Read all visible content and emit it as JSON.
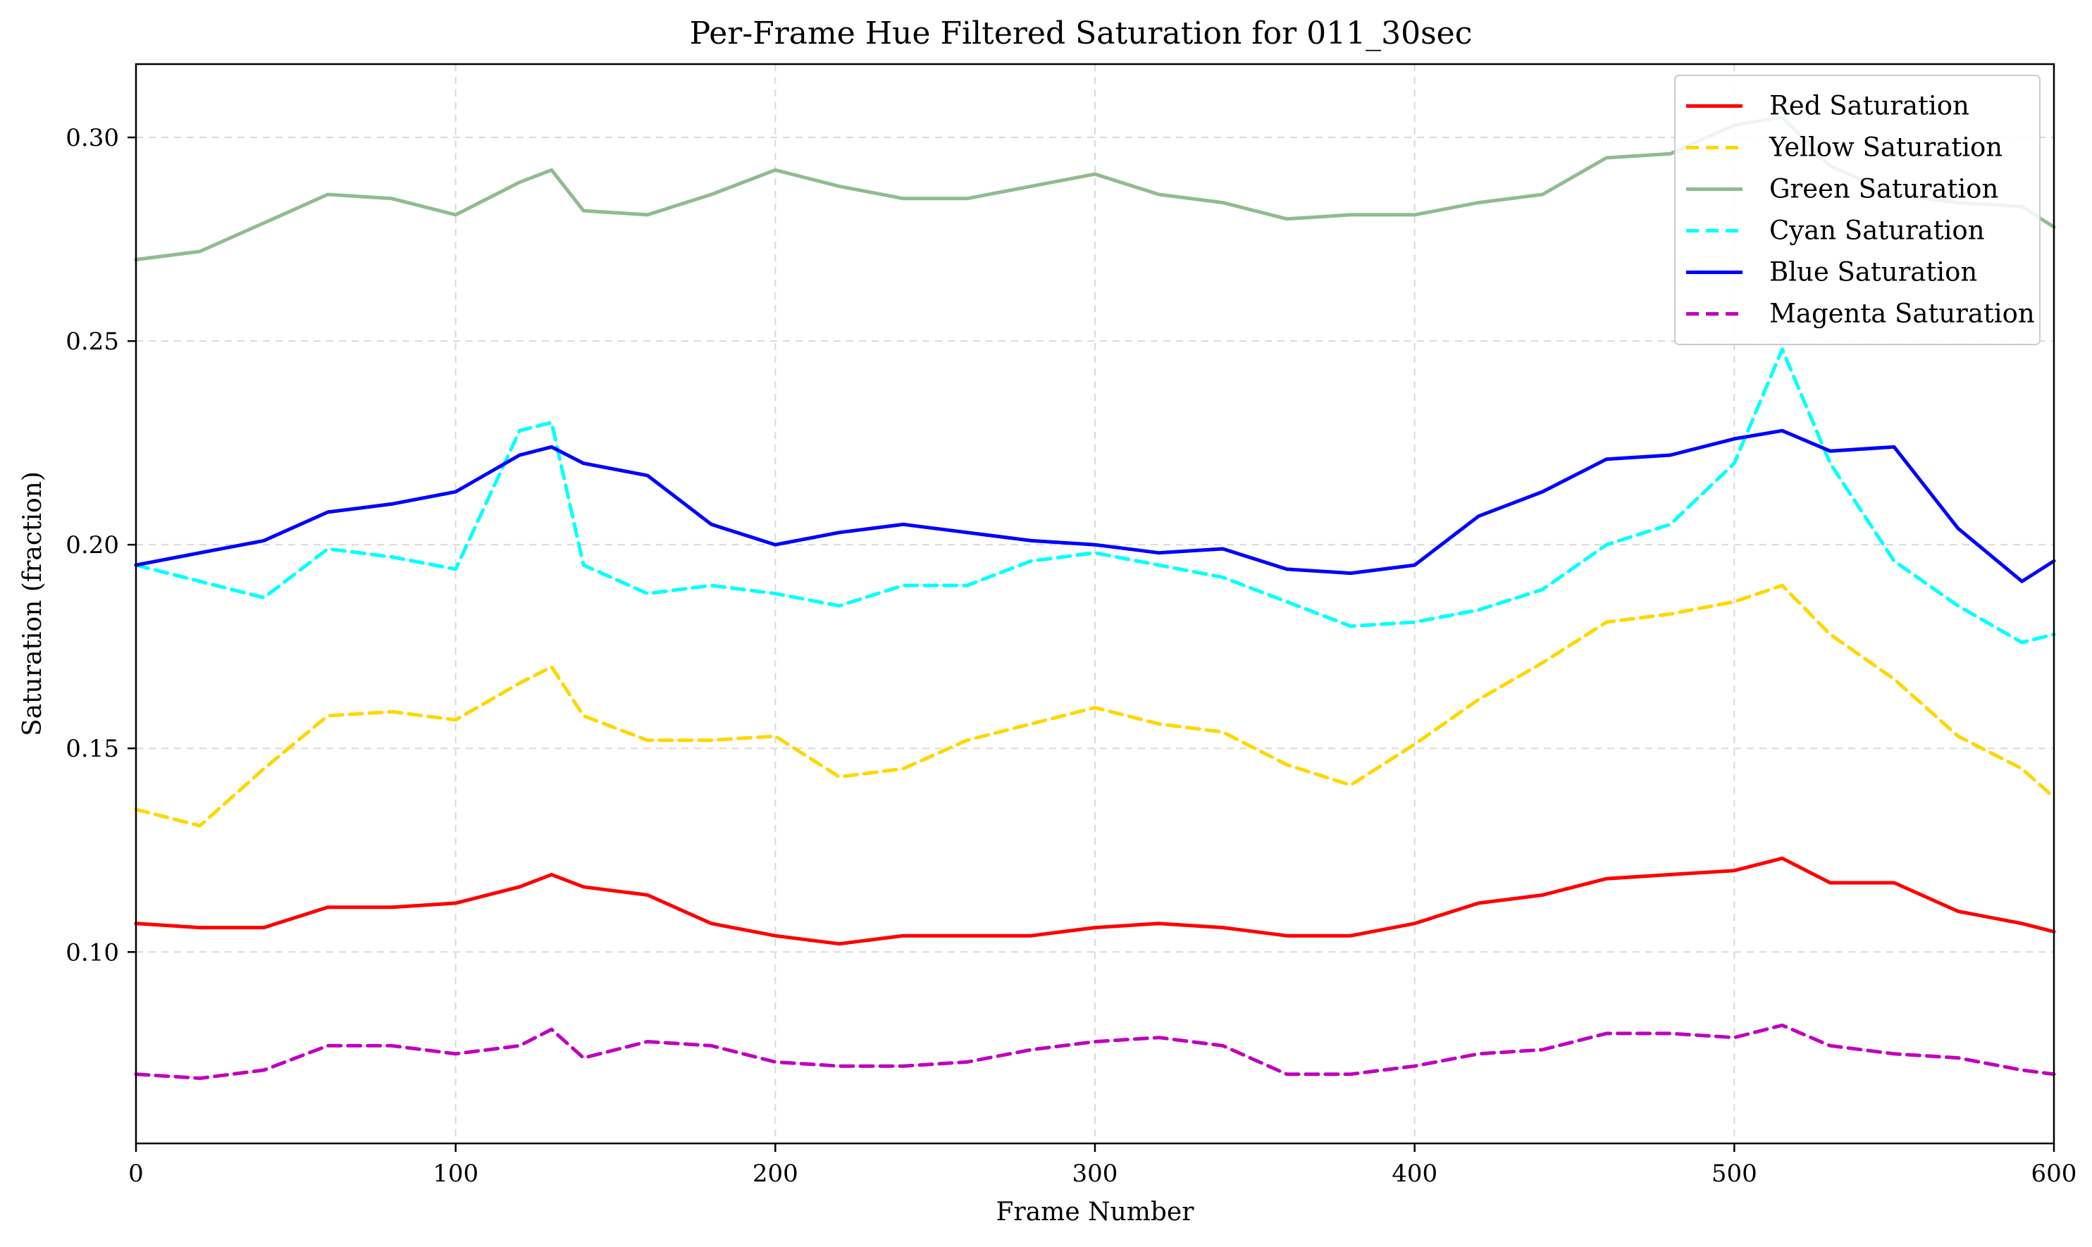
{
  "chart_data": {
    "type": "line",
    "title": "Per-Frame Hue Filtered Saturation for 011_30sec",
    "xlabel": "Frame Number",
    "ylabel": "Saturation (fraction)",
    "xlim": [
      0,
      600
    ],
    "ylim": [
      0.053,
      0.318
    ],
    "xticks": [
      0,
      100,
      200,
      300,
      400,
      500,
      600
    ],
    "yticks": [
      0.1,
      0.15,
      0.2,
      0.25,
      0.3
    ],
    "xtick_labels": [
      "0",
      "100",
      "200",
      "300",
      "400",
      "500",
      "600"
    ],
    "ytick_labels": [
      "0.10",
      "0.15",
      "0.20",
      "0.25",
      "0.30"
    ],
    "grid": true,
    "legend_position": "top-right",
    "x": [
      0,
      20,
      40,
      60,
      80,
      100,
      120,
      130,
      140,
      160,
      180,
      200,
      220,
      240,
      260,
      280,
      300,
      320,
      340,
      360,
      380,
      400,
      420,
      440,
      460,
      480,
      500,
      515,
      530,
      550,
      570,
      590,
      600
    ],
    "series": [
      {
        "name": "Red Saturation",
        "color": "#ff0000",
        "dash": "solid",
        "values": [
          0.107,
          0.106,
          0.106,
          0.111,
          0.111,
          0.112,
          0.116,
          0.119,
          0.116,
          0.114,
          0.107,
          0.104,
          0.102,
          0.104,
          0.104,
          0.104,
          0.106,
          0.107,
          0.106,
          0.104,
          0.104,
          0.107,
          0.112,
          0.114,
          0.118,
          0.119,
          0.12,
          0.123,
          0.117,
          0.117,
          0.11,
          0.107,
          0.105
        ]
      },
      {
        "name": "Yellow Saturation",
        "color": "#ffd700",
        "dash": "dashed",
        "values": [
          0.135,
          0.131,
          0.145,
          0.158,
          0.159,
          0.157,
          0.166,
          0.17,
          0.158,
          0.152,
          0.152,
          0.153,
          0.143,
          0.145,
          0.152,
          0.156,
          0.16,
          0.156,
          0.154,
          0.146,
          0.141,
          0.151,
          0.162,
          0.171,
          0.181,
          0.183,
          0.186,
          0.19,
          0.178,
          0.167,
          0.153,
          0.145,
          0.138
        ]
      },
      {
        "name": "Green Saturation",
        "color": "#8fbc8f",
        "dash": "solid",
        "values": [
          0.27,
          0.272,
          0.279,
          0.286,
          0.285,
          0.281,
          0.289,
          0.292,
          0.282,
          0.281,
          0.286,
          0.292,
          0.288,
          0.285,
          0.285,
          0.288,
          0.291,
          0.286,
          0.284,
          0.28,
          0.281,
          0.281,
          0.284,
          0.286,
          0.295,
          0.296,
          0.303,
          0.305,
          0.293,
          0.286,
          0.284,
          0.283,
          0.278
        ]
      },
      {
        "name": "Cyan Saturation",
        "color": "#00ffff",
        "dash": "dashed",
        "values": [
          0.195,
          0.191,
          0.187,
          0.199,
          0.197,
          0.194,
          0.228,
          0.23,
          0.195,
          0.188,
          0.19,
          0.188,
          0.185,
          0.19,
          0.19,
          0.196,
          0.198,
          0.195,
          0.192,
          0.186,
          0.18,
          0.181,
          0.184,
          0.189,
          0.2,
          0.205,
          0.22,
          0.248,
          0.22,
          0.196,
          0.185,
          0.176,
          0.178
        ]
      },
      {
        "name": "Blue Saturation",
        "color": "#0000ff",
        "dash": "solid",
        "values": [
          0.195,
          0.198,
          0.201,
          0.208,
          0.21,
          0.213,
          0.222,
          0.224,
          0.22,
          0.217,
          0.205,
          0.2,
          0.203,
          0.205,
          0.203,
          0.201,
          0.2,
          0.198,
          0.199,
          0.194,
          0.193,
          0.195,
          0.207,
          0.213,
          0.221,
          0.222,
          0.226,
          0.228,
          0.223,
          0.224,
          0.204,
          0.191,
          0.196
        ]
      },
      {
        "name": "Magenta Saturation",
        "color": "#bf00bf",
        "dash": "dashed",
        "values": [
          0.07,
          0.069,
          0.071,
          0.077,
          0.077,
          0.075,
          0.077,
          0.081,
          0.074,
          0.078,
          0.077,
          0.073,
          0.072,
          0.072,
          0.073,
          0.076,
          0.078,
          0.079,
          0.077,
          0.07,
          0.07,
          0.072,
          0.075,
          0.076,
          0.08,
          0.08,
          0.079,
          0.082,
          0.077,
          0.075,
          0.074,
          0.071,
          0.07
        ]
      }
    ]
  }
}
